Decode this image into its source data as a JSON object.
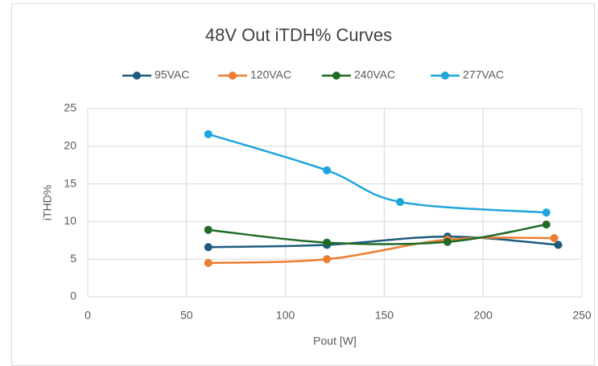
{
  "chart_data": {
    "type": "line",
    "title": "48V Out iTDH% Curves",
    "x_label": "Pout [W]",
    "y_label": "iTHD%",
    "xlim": [
      0,
      250
    ],
    "xticks": [
      0,
      50,
      100,
      150,
      200,
      250
    ],
    "ylim": [
      0,
      25
    ],
    "yticks": [
      0,
      5,
      10,
      15,
      20,
      25
    ],
    "grid": true,
    "legend": "top",
    "smooth": true,
    "series": [
      {
        "name": "95VAC",
        "color": "#1d5b7e",
        "x": [
          61,
          121,
          182,
          238
        ],
        "values": [
          6.6,
          6.9,
          8.0,
          6.9
        ]
      },
      {
        "name": "120VAC",
        "color": "#ed7d31",
        "x": [
          61,
          121,
          182,
          236
        ],
        "values": [
          4.5,
          5.0,
          7.6,
          7.8
        ]
      },
      {
        "name": "240VAC",
        "color": "#1f6b26",
        "x": [
          61,
          121,
          182,
          232
        ],
        "values": [
          8.9,
          7.2,
          7.3,
          9.6
        ]
      },
      {
        "name": "277VAC",
        "color": "#1ea5dc",
        "x": [
          61,
          121,
          158,
          232
        ],
        "values": [
          21.6,
          16.8,
          12.6,
          11.2
        ]
      }
    ]
  }
}
